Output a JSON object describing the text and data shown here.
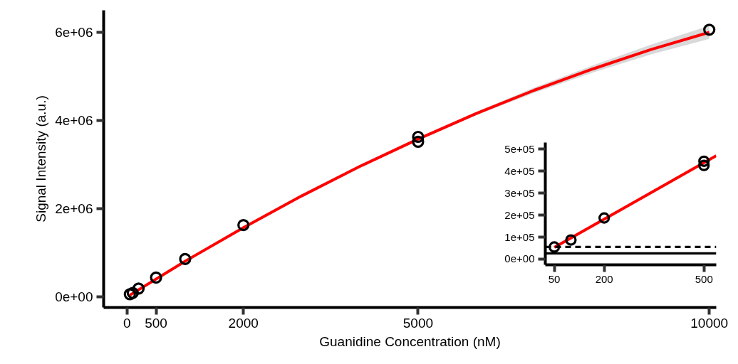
{
  "chart_data": [
    {
      "type": "scatter",
      "xlabel": "Guanidine Concentration (nM)",
      "ylabel": "Signal Intensity (a.u.)",
      "xlim": [
        -400,
        10120
      ],
      "ylim": [
        -240000,
        6500000
      ],
      "xticks": [
        0,
        500,
        2000,
        5000,
        10000
      ],
      "yticks": [
        {
          "value": 0,
          "label": "0e+00"
        },
        {
          "value": 2000000,
          "label": "2e+06"
        },
        {
          "value": 4000000,
          "label": "4e+06"
        },
        {
          "value": 6000000,
          "label": "6e+06"
        }
      ],
      "grid": false,
      "series": [
        {
          "type": "line",
          "color": "#ff0000",
          "x": [
            50,
            1000,
            2000,
            3000,
            4000,
            5000,
            6000,
            7000,
            8000,
            9000,
            10000
          ],
          "values": [
            40000,
            810000,
            1570000,
            2290000,
            2960000,
            3580000,
            4160000,
            4690000,
            5170000,
            5610000,
            6000000
          ],
          "lower": [
            40000,
            810000,
            1560000,
            2280000,
            2940000,
            3550000,
            4120000,
            4630000,
            5090000,
            5500000,
            5850000
          ],
          "upper": [
            40000,
            810000,
            1580000,
            2300000,
            2980000,
            3610000,
            4200000,
            4750000,
            5250000,
            5720000,
            6150000
          ]
        },
        {
          "marker": "circle",
          "color": "#000000",
          "x": [
            50,
            100,
            200,
            500,
            1000,
            2000,
            5000,
            5000,
            10000
          ],
          "values": [
            60000,
            90000,
            190000,
            440000,
            860000,
            1630000,
            3630000,
            3520000,
            6060000
          ]
        }
      ]
    },
    {
      "type": "scatter",
      "xlim": [
        23,
        537
      ],
      "ylim": [
        -26000,
        530000
      ],
      "xticks": [
        50,
        200,
        500
      ],
      "yticks": [
        {
          "value": 0,
          "label": "0e+00"
        },
        {
          "value": 100000,
          "label": "1e+05"
        },
        {
          "value": 200000,
          "label": "2e+05"
        },
        {
          "value": 300000,
          "label": "3e+05"
        },
        {
          "value": 400000,
          "label": "4e+05"
        },
        {
          "value": 500000,
          "label": "5e+05"
        }
      ],
      "grid": false,
      "ref_lines": [
        {
          "axis": "y",
          "value": 55000,
          "color": "#000000",
          "line_style": "dashed"
        },
        {
          "axis": "y",
          "value": 26000,
          "color": "#000000",
          "line_style": "solid"
        }
      ],
      "series": [
        {
          "type": "line",
          "color": "#ff0000",
          "x": [
            50,
            537
          ],
          "values": [
            53000,
            470000
          ]
        },
        {
          "marker": "circle",
          "color": "#000000",
          "x": [
            50,
            100,
            200,
            500,
            500
          ],
          "values": [
            55000,
            87000,
            187000,
            445000,
            426000
          ]
        }
      ]
    }
  ]
}
